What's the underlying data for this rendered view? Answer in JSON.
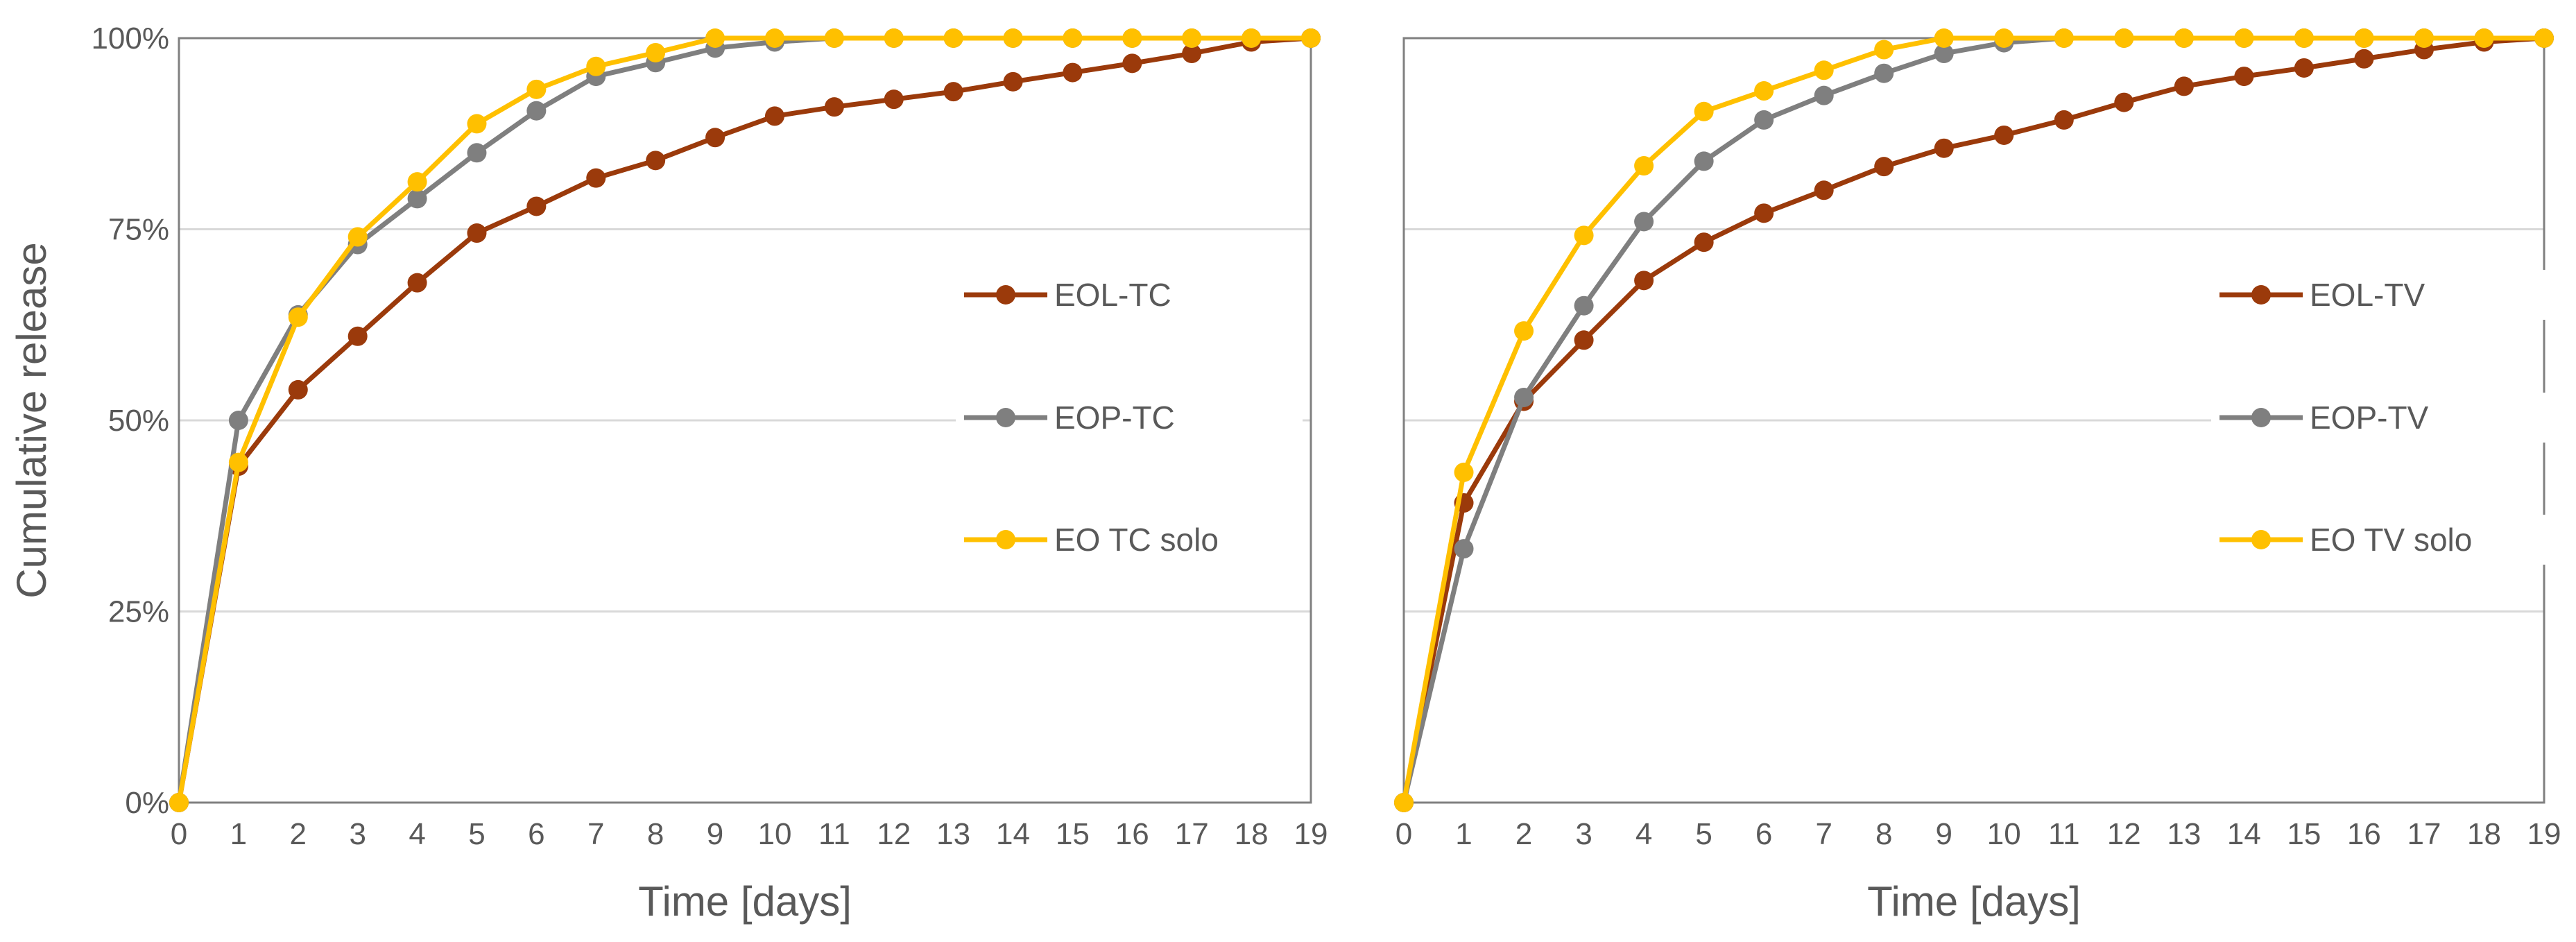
{
  "colors": {
    "eol": "#9B3A0B",
    "eop": "#7F7F7F",
    "eo_solo": "#FFC000",
    "axis": "#808080",
    "grid": "#D9D9D9",
    "text": "#595959"
  },
  "chart_data": [
    {
      "type": "line",
      "title": "",
      "xlabel": "Time [days]",
      "ylabel": "Cumulative release",
      "x": [
        0,
        1,
        2,
        3,
        4,
        5,
        6,
        7,
        8,
        9,
        10,
        11,
        12,
        13,
        14,
        15,
        16,
        17,
        18,
        19
      ],
      "xlim": [
        0,
        19
      ],
      "ylim": [
        0,
        100
      ],
      "yticks": [
        0,
        25,
        50,
        75,
        100
      ],
      "ytick_labels": [
        "0%",
        "25%",
        "50%",
        "75%",
        "100%"
      ],
      "grid": true,
      "legend_position": "center-right",
      "series": [
        {
          "name": "EOL-TC",
          "color_key": "eol",
          "values": [
            0,
            44,
            54,
            61,
            68,
            74.5,
            78,
            81.7,
            84,
            87,
            89.8,
            91,
            92,
            93,
            94.3,
            95.5,
            96.7,
            98,
            99.5,
            100
          ]
        },
        {
          "name": "EOP-TC",
          "color_key": "eop",
          "values": [
            0,
            50,
            63.8,
            73,
            79,
            85,
            90.5,
            95,
            96.8,
            98.7,
            99.5,
            100,
            100,
            100,
            100,
            100,
            100,
            100,
            100,
            100
          ]
        },
        {
          "name": "EO TC solo",
          "color_key": "eo_solo",
          "values": [
            0,
            44.5,
            63.5,
            74,
            81.2,
            88.8,
            93.3,
            96.3,
            98.1,
            100,
            100,
            100,
            100,
            100,
            100,
            100,
            100,
            100,
            100,
            100
          ]
        }
      ]
    },
    {
      "type": "line",
      "title": "",
      "xlabel": "Time [days]",
      "ylabel": "",
      "x": [
        0,
        1,
        2,
        3,
        4,
        5,
        6,
        7,
        8,
        9,
        10,
        11,
        12,
        13,
        14,
        15,
        16,
        17,
        18,
        19
      ],
      "xlim": [
        0,
        19
      ],
      "ylim": [
        0,
        100
      ],
      "yticks": [
        0,
        25,
        50,
        75,
        100
      ],
      "ytick_labels": [],
      "grid": true,
      "legend_position": "center-right",
      "series": [
        {
          "name": "EOL-TV",
          "color_key": "eol",
          "values": [
            0,
            39.2,
            52.5,
            60.5,
            68.3,
            73.3,
            77.1,
            80.1,
            83.2,
            85.6,
            87.3,
            89.3,
            91.6,
            93.7,
            95,
            96.1,
            97.3,
            98.5,
            99.5,
            100
          ]
        },
        {
          "name": "EOP-TV",
          "color_key": "eop",
          "values": [
            0,
            33.2,
            53,
            65,
            76,
            83.9,
            89.3,
            92.5,
            95.4,
            98,
            99.4,
            100,
            100,
            100,
            100,
            100,
            100,
            100,
            100,
            100
          ]
        },
        {
          "name": "EO TV solo",
          "color_key": "eo_solo",
          "values": [
            0,
            43.2,
            61.7,
            74.2,
            83.3,
            90.4,
            93.1,
            95.8,
            98.5,
            100,
            100,
            100,
            100,
            100,
            100,
            100,
            100,
            100,
            100,
            100
          ]
        }
      ]
    }
  ]
}
